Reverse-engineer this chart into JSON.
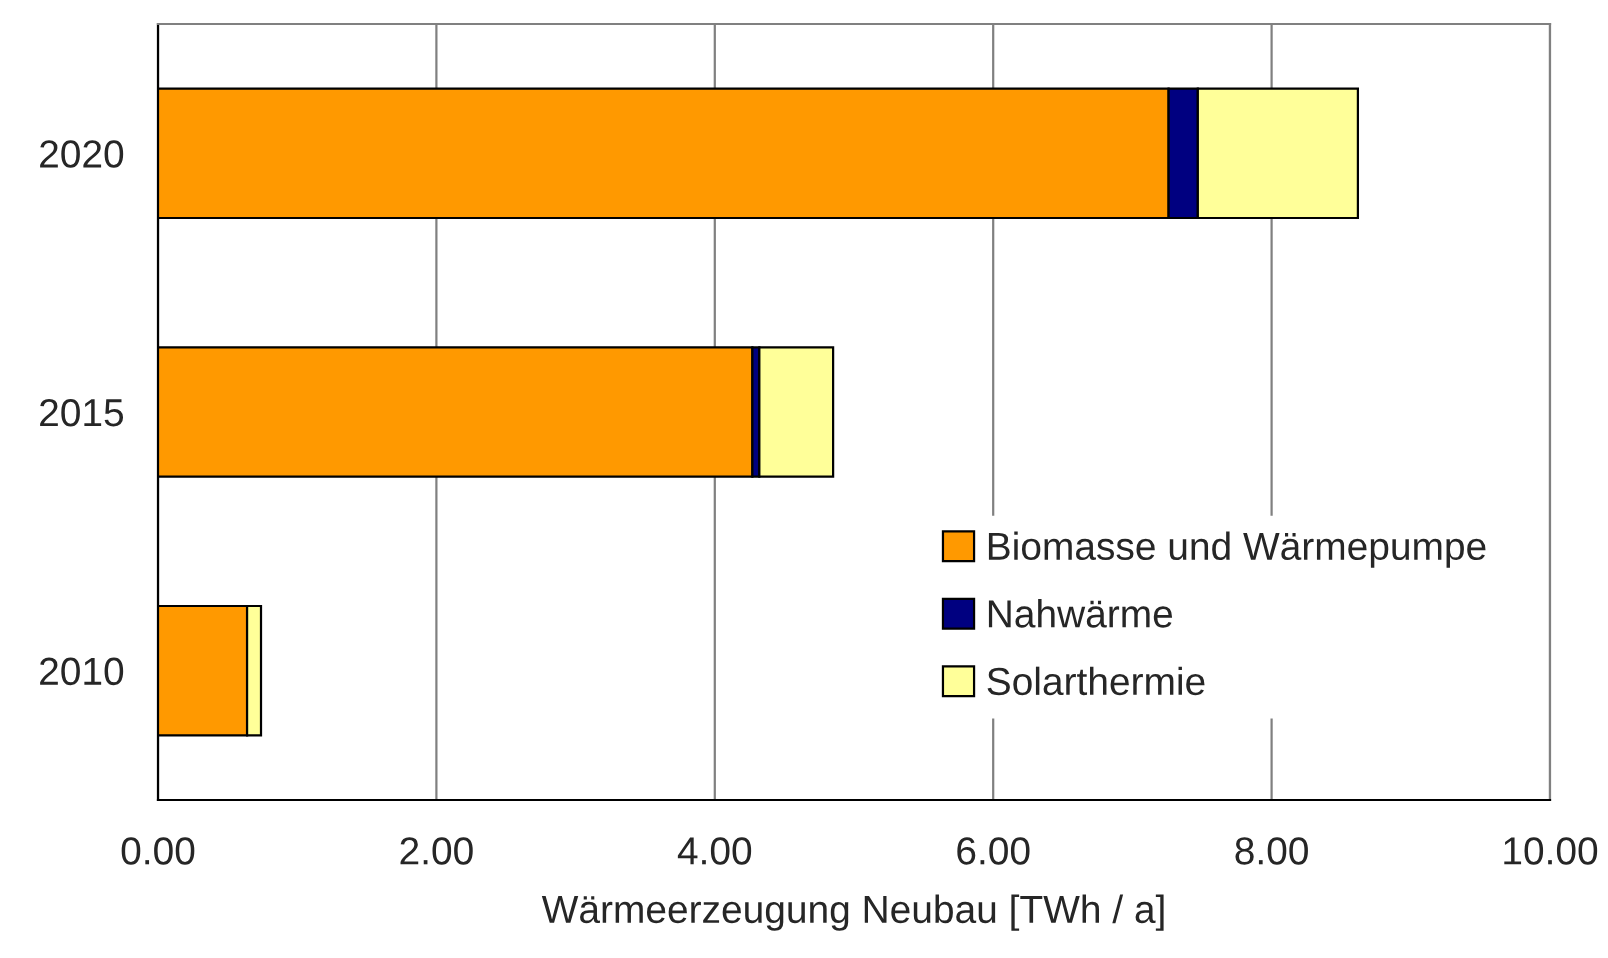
{
  "chart_data": {
    "type": "bar",
    "orientation": "horizontal",
    "stacked": true,
    "xlabel": "Wärmeerzeugung Neubau [TWh / a]",
    "categories": [
      "2020",
      "2015",
      "2010"
    ],
    "series": [
      {
        "name": "Biomasse und Wärmepumpe",
        "color": "#ff9900",
        "values": [
          7.26,
          4.27,
          0.64
        ]
      },
      {
        "name": "Nahwärme",
        "color": "#000080",
        "values": [
          0.21,
          0.05,
          null
        ]
      },
      {
        "name": "Solarthermie",
        "color": "#ffff99",
        "values": [
          1.15,
          0.53,
          0.1
        ]
      }
    ],
    "xlim": [
      0,
      10
    ],
    "xticks": [
      {
        "value": 0,
        "label": "0.00"
      },
      {
        "value": 2,
        "label": "2.00"
      },
      {
        "value": 4,
        "label": "4.00"
      },
      {
        "value": 6,
        "label": "6.00"
      },
      {
        "value": 8,
        "label": "8.00"
      },
      {
        "value": 10,
        "label": "10.00"
      }
    ],
    "grid": "x",
    "legend": "bottom right"
  }
}
